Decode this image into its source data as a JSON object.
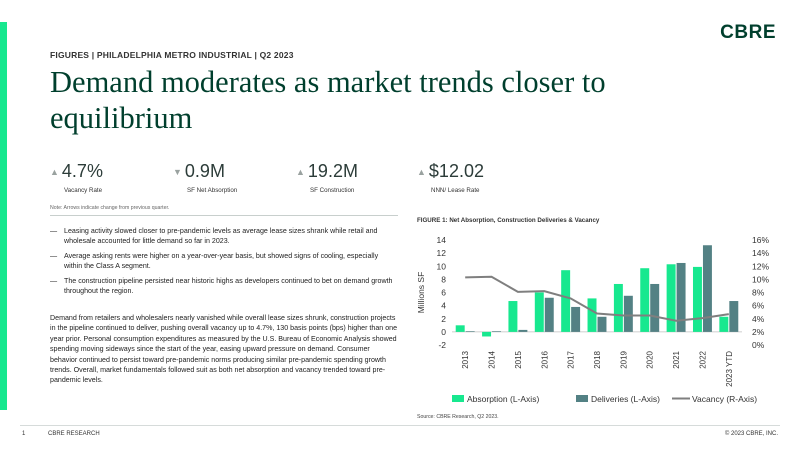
{
  "brand": {
    "logo_text": "CBRE",
    "accent_color": "#17e88f",
    "primary_color": "#003f2d"
  },
  "header": {
    "kicker": "FIGURES | PHILADELPHIA METRO INDUSTRIAL | Q2 2023",
    "headline": "Demand moderates as market trends closer to equilibrium"
  },
  "kpis": [
    {
      "arrow": "▲",
      "value": "4.7%",
      "label": "Vacancy Rate"
    },
    {
      "arrow": "▼",
      "value": "0.9M",
      "label": "SF Net Absorption"
    },
    {
      "arrow": "▲",
      "value": "19.2M",
      "label": "SF Construction"
    },
    {
      "arrow": "▲",
      "value": "$12.02",
      "label": "NNN/ Lease Rate"
    }
  ],
  "note": "Note: Arrows indicate change from previous quarter.",
  "bullets": [
    "Leasing activity slowed closer to pre-pandemic levels as average lease sizes shrank while retail and wholesale accounted for little demand so far in 2023.",
    "Average asking rents were higher on a year-over-year basis, but showed signs of cooling, especially within the Class A segment.",
    "The construction pipeline persisted near historic highs as developers continued to bet on demand growth throughout the region."
  ],
  "body_paragraph": "Demand from retailers and wholesalers nearly vanished while overall lease sizes shrunk, construction projects in the pipeline continued to deliver, pushing overall vacancy up to 4.7%, 130 basis points (bps) higher than one year prior. Personal consumption expenditures as measured by the U.S. Bureau of Economic Analysis showed spending moving sideways since the start of the year, easing upward pressure on demand. Consumer behavior continued to persist toward pre-pandemic norms producing similar pre-pandemic spending growth trends. Overall, market fundamentals followed suit as both net absorption and vacancy trended toward pre-pandemic levels.",
  "figure": {
    "title": "FIGURE 1: Net Absorption, Construction Deliveries & Vacancy",
    "source": "Source: CBRE Research, Q2 2023."
  },
  "chart_data": {
    "type": "bar",
    "categories": [
      "2013",
      "2014",
      "2015",
      "2016",
      "2017",
      "2018",
      "2019",
      "2020",
      "2021",
      "2022",
      "2023 YTD"
    ],
    "series": [
      {
        "name": "Absorption (L-Axis)",
        "kind": "bar",
        "axis": "left",
        "color": "#17e88f",
        "values": [
          1.0,
          -0.7,
          4.7,
          6.0,
          9.4,
          5.1,
          7.3,
          9.7,
          10.3,
          9.9,
          2.3
        ]
      },
      {
        "name": "Deliveries (L-Axis)",
        "kind": "bar",
        "axis": "left",
        "color": "#538184",
        "values": [
          0.1,
          0.1,
          0.3,
          5.2,
          3.8,
          2.3,
          5.5,
          7.3,
          10.5,
          13.2,
          4.7
        ]
      },
      {
        "name": "Vacancy (R-Axis)",
        "kind": "line",
        "axis": "right",
        "color": "#7f7f7f",
        "values": [
          10.3,
          10.4,
          8.1,
          8.2,
          7.1,
          4.8,
          4.5,
          4.5,
          3.7,
          4.1,
          4.7
        ]
      }
    ],
    "ylabel": "Millions SF",
    "ylim_left": [
      -2,
      14
    ],
    "yticks_left": [
      "14",
      "12",
      "10",
      "8",
      "6",
      "4",
      "2",
      "0",
      "-2"
    ],
    "ylim_right": [
      0,
      16
    ],
    "yticks_right": [
      "16%",
      "14%",
      "12%",
      "10%",
      "8%",
      "6%",
      "4%",
      "2%",
      "0%"
    ],
    "grid": false,
    "legend_position": "bottom"
  },
  "footer": {
    "page": "1",
    "brand": "CBRE RESEARCH",
    "copyright": "© 2023 CBRE, INC."
  }
}
